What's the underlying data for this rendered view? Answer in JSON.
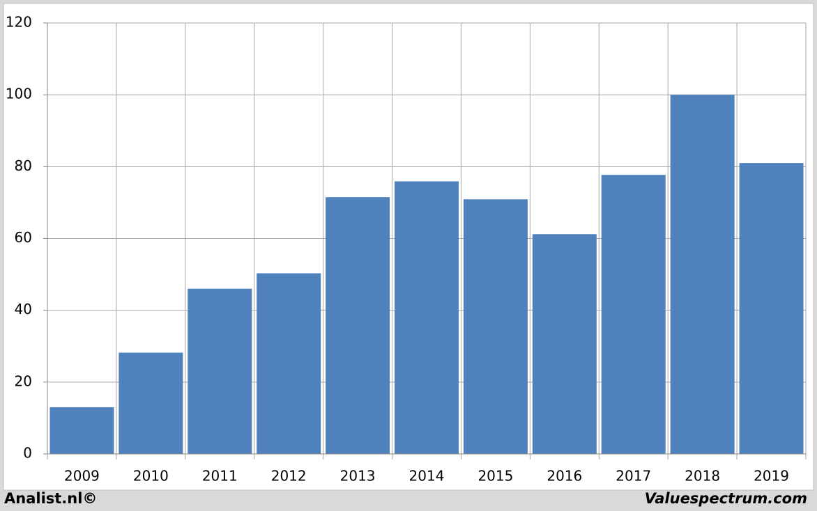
{
  "chart_data": {
    "type": "bar",
    "categories": [
      "2009",
      "2010",
      "2011",
      "2012",
      "2013",
      "2014",
      "2015",
      "2016",
      "2017",
      "2018",
      "2019"
    ],
    "values": [
      13.0,
      28.2,
      46.0,
      50.3,
      71.5,
      75.9,
      70.9,
      61.2,
      77.7,
      100.0,
      81.0
    ],
    "color": "#4f81bd",
    "ylim": [
      0,
      120
    ],
    "yticks": [
      0,
      20,
      40,
      60,
      80,
      100,
      120
    ],
    "grid": true
  },
  "footer": {
    "left": "Analist.nl©",
    "right": "Valuespectrum.com"
  }
}
